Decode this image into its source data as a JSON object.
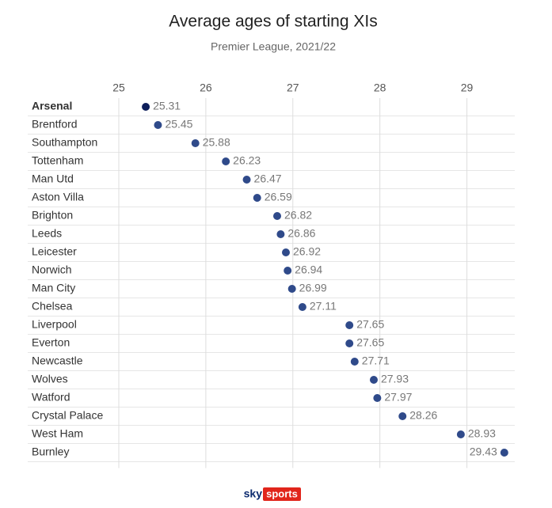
{
  "chart_data": {
    "type": "dot",
    "title": "Average ages of starting XIs",
    "subtitle": "Premier League, 2021/22",
    "categories": [
      "Arsenal",
      "Brentford",
      "Southampton",
      "Tottenham",
      "Man Utd",
      "Aston Villa",
      "Brighton",
      "Leeds",
      "Leicester",
      "Norwich",
      "Man City",
      "Chelsea",
      "Liverpool",
      "Everton",
      "Newcastle",
      "Wolves",
      "Watford",
      "Crystal Palace",
      "West Ham",
      "Burnley"
    ],
    "values": [
      25.31,
      25.45,
      25.88,
      26.23,
      26.47,
      26.59,
      26.82,
      26.86,
      26.92,
      26.94,
      26.99,
      27.11,
      27.65,
      27.65,
      27.71,
      27.93,
      27.97,
      28.26,
      28.93,
      29.43
    ],
    "color": "#2f4a8a",
    "colors": [
      "#0d1e5a",
      "#2f4a8a",
      "#2f4a8a",
      "#2f4a8a",
      "#2f4a8a",
      "#2f4a8a",
      "#2f4a8a",
      "#2f4a8a",
      "#2f4a8a",
      "#2f4a8a",
      "#2f4a8a",
      "#2f4a8a",
      "#2f4a8a",
      "#2f4a8a",
      "#2f4a8a",
      "#2f4a8a",
      "#2f4a8a",
      "#2f4a8a",
      "#2f4a8a",
      "#2f4a8a"
    ],
    "xlim": [
      25,
      29.55
    ],
    "xticks": [
      25,
      26,
      27,
      28,
      29
    ],
    "grid": true
  },
  "footer": {
    "brand": "sky",
    "product": "sports"
  }
}
